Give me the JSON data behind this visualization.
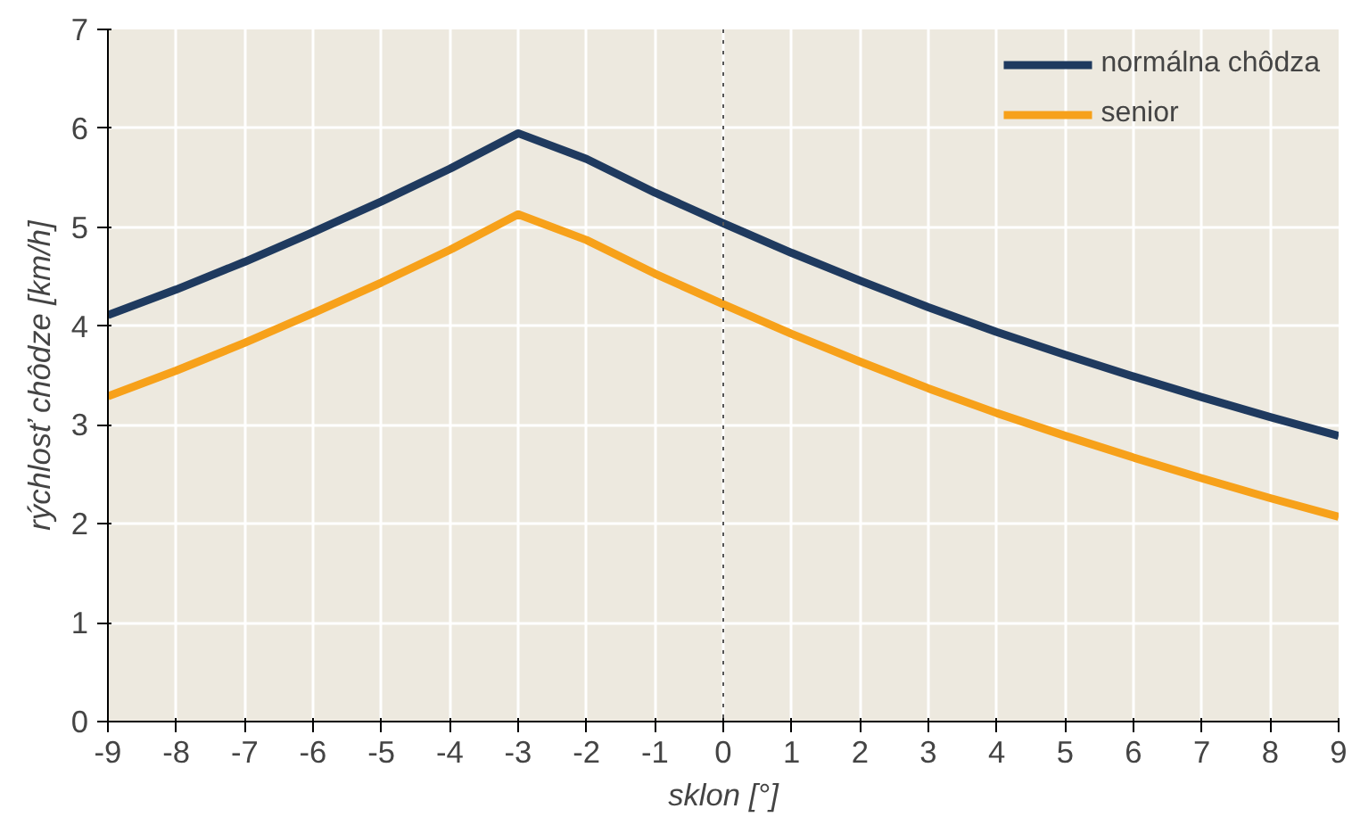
{
  "chart_data": {
    "type": "line",
    "xlabel": "sklon [°]",
    "ylabel": "rýchlosť chôdze [km/h]",
    "x": [
      -9,
      -8,
      -7,
      -6,
      -5,
      -4,
      -3,
      -2,
      -1,
      0,
      1,
      2,
      3,
      4,
      5,
      6,
      7,
      8,
      9
    ],
    "series": [
      {
        "name": "normálna chôdza",
        "color": "#1f3a5f",
        "values": [
          4.11,
          4.37,
          4.65,
          4.95,
          5.26,
          5.59,
          5.95,
          5.69,
          5.35,
          5.04,
          4.74,
          4.46,
          4.19,
          3.94,
          3.71,
          3.49,
          3.28,
          3.08,
          2.89
        ]
      },
      {
        "name": "senior",
        "color": "#f7a11a",
        "values": [
          3.29,
          3.55,
          3.83,
          4.13,
          4.44,
          4.77,
          5.13,
          4.87,
          4.53,
          4.22,
          3.92,
          3.64,
          3.37,
          3.12,
          2.89,
          2.67,
          2.46,
          2.26,
          2.07
        ]
      }
    ],
    "xlim": [
      -9,
      9
    ],
    "ylim": [
      0,
      7
    ],
    "xticks": [
      -9,
      -8,
      -7,
      -6,
      -5,
      -4,
      -3,
      -2,
      -1,
      0,
      1,
      2,
      3,
      4,
      5,
      6,
      7,
      8,
      9
    ],
    "yticks": [
      0,
      1,
      2,
      3,
      4,
      5,
      6,
      7
    ],
    "ref_lines": [
      {
        "axis": "x",
        "value": 0,
        "label": null,
        "color": "#555555",
        "line_style": "dotted"
      }
    ],
    "grid": true,
    "legend": "top right",
    "line_style": "solid",
    "marker": "none"
  }
}
